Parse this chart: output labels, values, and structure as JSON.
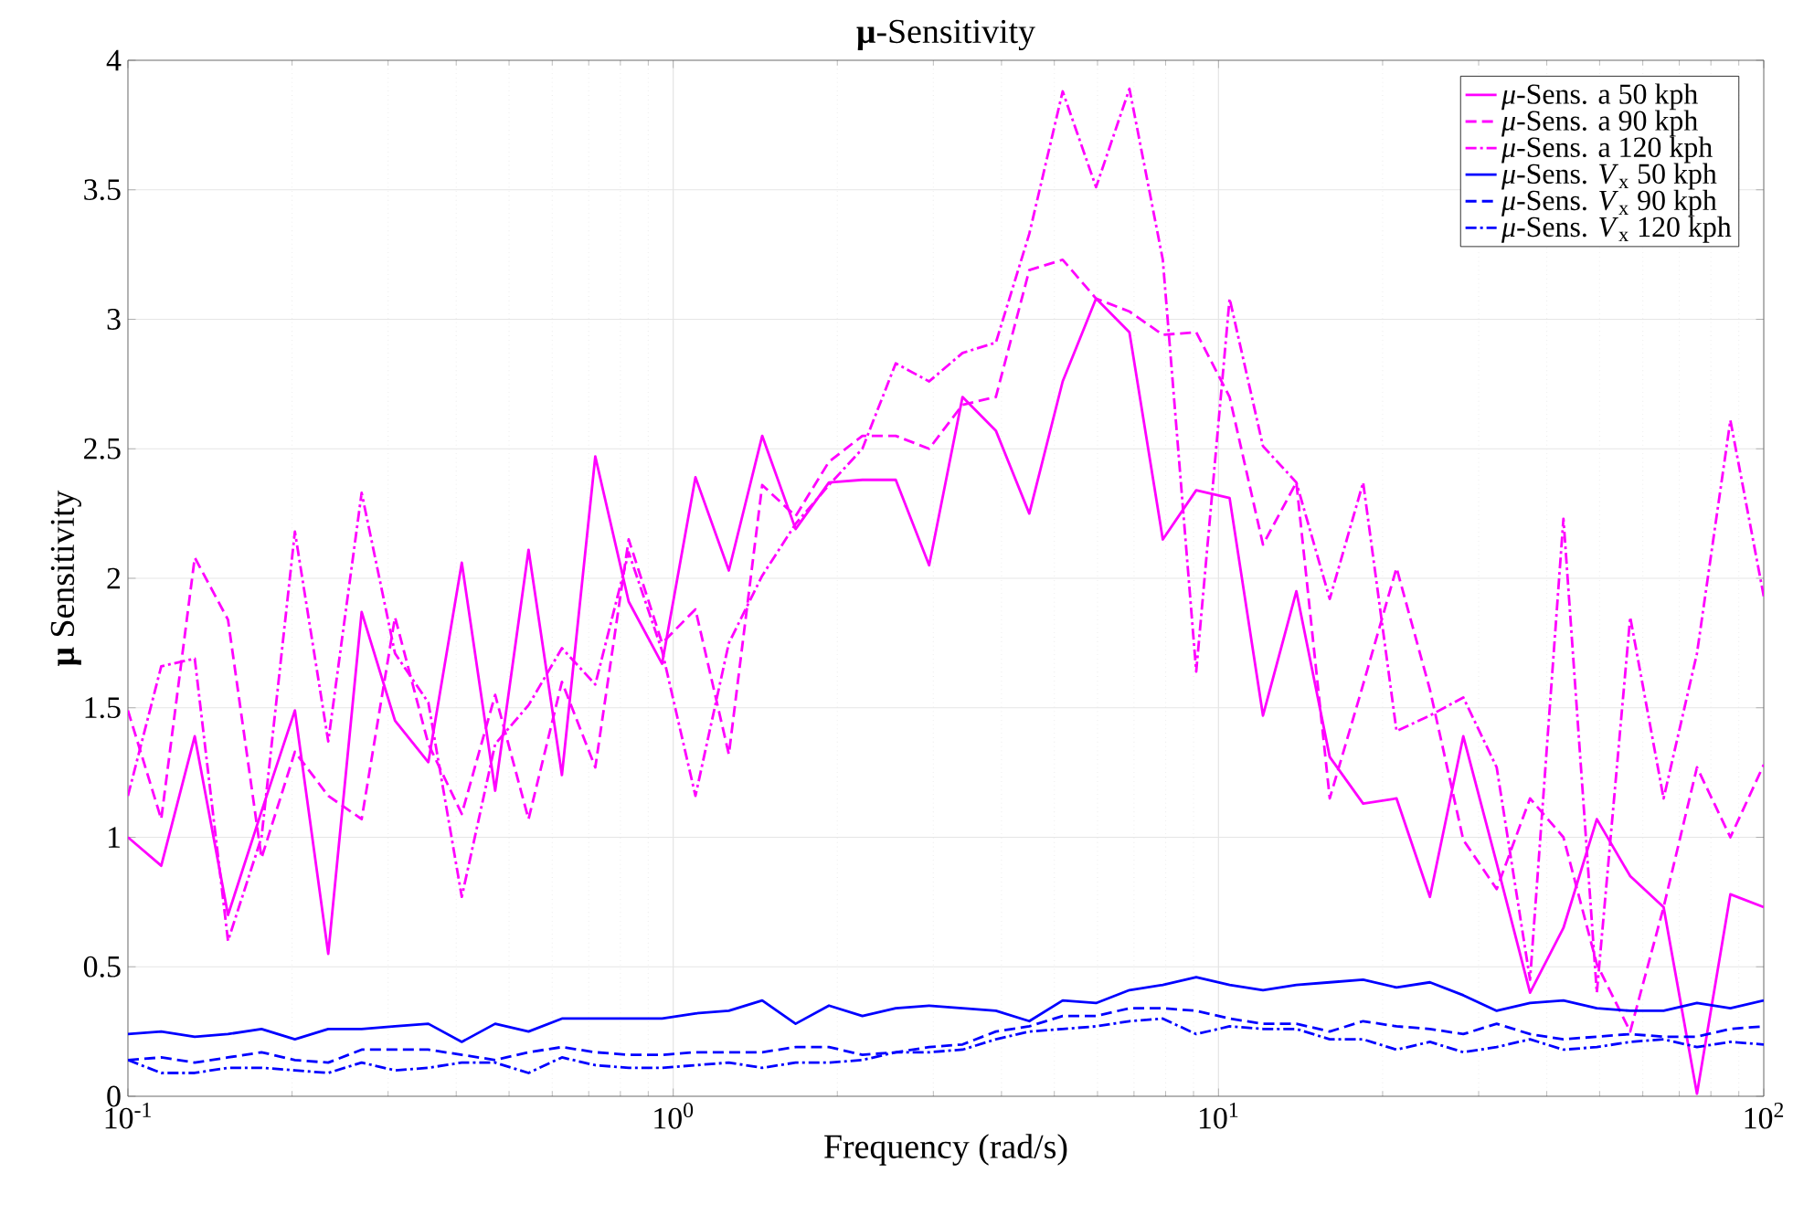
{
  "chart_data": {
    "type": "line",
    "title": "**μ**-Sensitivity",
    "xlabel": "Frequency (rad/s)",
    "ylabel": "**μ** Sensitivity",
    "x": [
      0.1,
      0.1151,
      0.1326,
      0.1526,
      0.1758,
      0.2024,
      0.233,
      0.2683,
      0.3089,
      0.3556,
      0.4095,
      0.4715,
      0.5429,
      0.6251,
      0.7197,
      0.8286,
      0.9541,
      1.0985,
      1.2649,
      1.4563,
      1.6768,
      1.9307,
      2.223,
      2.5595,
      2.9471,
      3.3932,
      3.9069,
      4.4984,
      5.1795,
      5.9636,
      6.8665,
      7.906,
      9.103,
      10.481,
      12.068,
      13.895,
      15.999,
      18.421,
      21.21,
      24.421,
      28.118,
      32.375,
      37.276,
      42.919,
      49.417,
      56.899,
      65.513,
      75.431,
      86.851,
      100
    ],
    "series": [
      {
        "name": "*μ*-Sens. a 50 kph",
        "color": "#ff00ff",
        "line_style": "solid",
        "values": [
          1.0,
          0.89,
          1.39,
          0.7,
          1.1,
          1.49,
          0.55,
          1.87,
          1.45,
          1.29,
          2.06,
          1.18,
          2.11,
          1.24,
          2.47,
          1.91,
          1.67,
          2.39,
          2.03,
          2.55,
          2.19,
          2.37,
          2.38,
          2.38,
          2.05,
          2.7,
          2.57,
          2.25,
          2.76,
          3.08,
          2.95,
          2.15,
          2.34,
          2.31,
          1.47,
          1.95,
          1.31,
          1.13,
          1.15,
          0.77,
          1.39,
          0.9,
          0.4,
          0.65,
          1.07,
          0.85,
          0.73,
          0.01,
          0.78,
          0.73
        ]
      },
      {
        "name": "*μ*-Sens. a 90 kph",
        "color": "#ff00ff",
        "line_style": "dashed",
        "values": [
          1.49,
          1.07,
          2.08,
          1.84,
          0.92,
          1.33,
          1.16,
          1.07,
          1.85,
          1.36,
          1.09,
          1.55,
          1.07,
          1.6,
          1.27,
          2.15,
          1.75,
          1.88,
          1.32,
          2.36,
          2.24,
          2.45,
          2.55,
          2.55,
          2.5,
          2.67,
          2.7,
          3.19,
          3.23,
          3.08,
          3.03,
          2.94,
          2.95,
          2.7,
          2.13,
          2.37,
          1.15,
          1.59,
          2.04,
          1.57,
          0.99,
          0.8,
          1.15,
          1.0,
          0.51,
          0.25,
          0.73,
          1.27,
          1.0,
          1.28
        ]
      },
      {
        "name": "*μ*-Sens. a 120 kph",
        "color": "#ff00ff",
        "line_style": "dashdot",
        "values": [
          1.16,
          1.66,
          1.69,
          0.6,
          1.0,
          2.18,
          1.37,
          2.33,
          1.71,
          1.52,
          0.77,
          1.36,
          1.51,
          1.73,
          1.59,
          2.1,
          1.72,
          1.16,
          1.75,
          2.01,
          2.21,
          2.36,
          2.5,
          2.83,
          2.76,
          2.87,
          2.91,
          3.33,
          3.88,
          3.51,
          3.89,
          3.23,
          1.64,
          3.08,
          2.51,
          2.37,
          1.92,
          2.37,
          1.41,
          1.47,
          1.54,
          1.27,
          0.45,
          2.23,
          0.4,
          1.85,
          1.15,
          1.71,
          2.61,
          1.93
        ]
      },
      {
        "name": "*μ*-Sens. *V*$_{x}$ 50 kph",
        "color": "#0000ff",
        "line_style": "solid",
        "values": [
          0.24,
          0.25,
          0.23,
          0.24,
          0.26,
          0.22,
          0.26,
          0.26,
          0.27,
          0.28,
          0.21,
          0.28,
          0.25,
          0.3,
          0.3,
          0.3,
          0.3,
          0.32,
          0.33,
          0.37,
          0.28,
          0.35,
          0.31,
          0.34,
          0.35,
          0.34,
          0.33,
          0.29,
          0.37,
          0.36,
          0.41,
          0.43,
          0.46,
          0.43,
          0.41,
          0.43,
          0.44,
          0.45,
          0.42,
          0.44,
          0.39,
          0.33,
          0.36,
          0.37,
          0.34,
          0.33,
          0.33,
          0.36,
          0.34,
          0.37
        ]
      },
      {
        "name": "*μ*-Sens. *V*$_{x}$ 90 kph",
        "color": "#0000ff",
        "line_style": "dashed",
        "values": [
          0.14,
          0.15,
          0.13,
          0.15,
          0.17,
          0.14,
          0.13,
          0.18,
          0.18,
          0.18,
          0.16,
          0.14,
          0.17,
          0.19,
          0.17,
          0.16,
          0.16,
          0.17,
          0.17,
          0.17,
          0.19,
          0.19,
          0.16,
          0.17,
          0.19,
          0.2,
          0.25,
          0.27,
          0.31,
          0.31,
          0.34,
          0.34,
          0.33,
          0.3,
          0.28,
          0.28,
          0.25,
          0.29,
          0.27,
          0.26,
          0.24,
          0.28,
          0.24,
          0.22,
          0.23,
          0.24,
          0.23,
          0.23,
          0.26,
          0.27
        ]
      },
      {
        "name": "*μ*-Sens. *V*$_{x}$ 120 kph",
        "color": "#0000ff",
        "line_style": "dashdot",
        "values": [
          0.14,
          0.09,
          0.09,
          0.11,
          0.11,
          0.1,
          0.09,
          0.13,
          0.1,
          0.11,
          0.13,
          0.13,
          0.09,
          0.15,
          0.12,
          0.11,
          0.11,
          0.12,
          0.13,
          0.11,
          0.13,
          0.13,
          0.14,
          0.17,
          0.17,
          0.18,
          0.22,
          0.25,
          0.26,
          0.27,
          0.29,
          0.3,
          0.24,
          0.27,
          0.26,
          0.26,
          0.22,
          0.22,
          0.18,
          0.21,
          0.17,
          0.19,
          0.22,
          0.18,
          0.19,
          0.21,
          0.22,
          0.19,
          0.21,
          0.2
        ]
      }
    ],
    "log": "x",
    "xlim": [
      0.1,
      100
    ],
    "xticks": [
      {
        "value": 0.1,
        "label": "10$^{-1}$"
      },
      {
        "value": 1,
        "label": "10$^{0}$"
      },
      {
        "value": 10,
        "label": "10$^{1}$"
      },
      {
        "value": 100,
        "label": "10$^{2}$"
      }
    ],
    "ylim": [
      0,
      4
    ],
    "yticks": [
      0,
      0.5,
      1,
      1.5,
      2,
      2.5,
      3,
      3.5,
      4
    ],
    "grid": true,
    "legend": "top right"
  }
}
